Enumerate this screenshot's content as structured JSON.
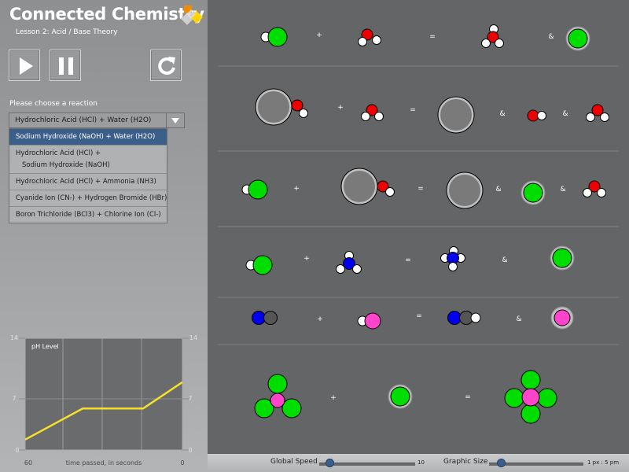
{
  "app": {
    "title": "Connected Chemistry",
    "subtitle": "Lesson 2: Acid / Base Theory"
  },
  "controls": {
    "play_icon": "play-icon",
    "pause_icon": "pause-icon",
    "reset_icon": "reset-icon"
  },
  "reaction_selector": {
    "label": "Please choose a reaction",
    "selected_value": "Hydrochloric Acid (HCl) + Water (H2O)",
    "options": [
      {
        "text": "Sodium Hydroxide (NaOH) + Water (H2O)"
      },
      {
        "line1": "Hydrochloric Acid (HCl) +",
        "line2": "Sodium Hydroxide (NaOH)"
      },
      {
        "text": "Hydrochloric Acid (HCl) + Ammonia (NH3)"
      },
      {
        "text": "Cyanide Ion (CN-) + Hydrogen Bromide (HBr)"
      },
      {
        "text": "Boron Trichloride (BCl3) + Chlorine Ion (Cl-)"
      }
    ]
  },
  "ph_chart": {
    "title": "pH Level",
    "y_ticks": [
      "14",
      "7",
      "0"
    ],
    "x_start": "60",
    "x_end": "0",
    "xlabel": "time passed, in seconds"
  },
  "chart_data": {
    "type": "line",
    "title": "pH Level",
    "xlabel": "time passed, in seconds",
    "ylabel": "",
    "x": [
      60,
      38,
      15,
      0
    ],
    "series": [
      {
        "values": [
          1.3,
          5.2,
          5.2,
          8.5
        ]
      }
    ],
    "xlim": [
      60,
      0
    ],
    "ylim": [
      0,
      14
    ],
    "y_ticks": [
      0,
      7,
      14
    ],
    "grid": true,
    "color": "#f5e12a"
  },
  "equation_symbols": {
    "plus": "+",
    "equals": "=",
    "and": "&"
  },
  "bottom_bar": {
    "global_speed_label": "Global Speed",
    "global_speed_value": "10",
    "global_speed_fraction": 0.11,
    "graphic_size_label": "Graphic Size",
    "graphic_size_value": "1 px : 5 pm",
    "graphic_size_fraction": 0.13
  },
  "colors": {
    "green_atom": "#00dd00",
    "red_atom": "#ee0000",
    "blue_atom": "#0000ee",
    "pink_atom": "#ff44cc",
    "gray_atom": "#7a7a7a",
    "white_atom": "#ffffff",
    "selected_option": "#3c5f8a",
    "slider_knob": "#3a5f8e"
  }
}
